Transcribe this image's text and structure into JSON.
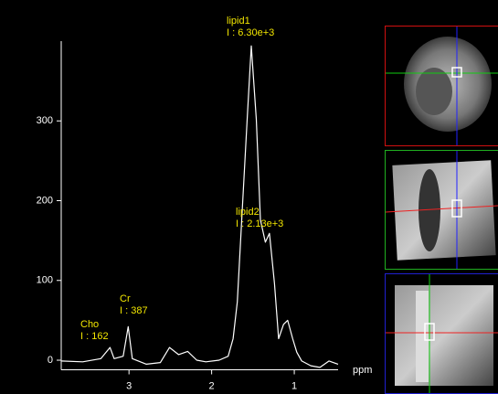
{
  "chart_data": {
    "type": "line",
    "x_label": "ppm",
    "color": "#ffffff",
    "annotation_color": "#f2e600",
    "x": [
      3.82,
      3.56,
      3.34,
      3.23,
      3.18,
      3.07,
      3.01,
      2.96,
      2.79,
      2.62,
      2.51,
      2.4,
      2.29,
      2.18,
      2.07,
      1.91,
      1.8,
      1.74,
      1.69,
      1.63,
      1.57,
      1.52,
      1.46,
      1.41,
      1.35,
      1.3,
      1.24,
      1.19,
      1.13,
      1.08,
      1.02,
      0.97,
      0.91,
      0.8,
      0.69,
      0.58,
      0.47
    ],
    "values": [
      -1,
      -2,
      2,
      16,
      2,
      5,
      42,
      2,
      -5,
      -3,
      16,
      7,
      11,
      0,
      -2,
      0,
      5,
      27,
      73,
      188,
      302,
      394,
      302,
      176,
      148,
      159,
      96,
      27,
      45,
      50,
      27,
      10,
      -1,
      -7,
      -9,
      -1,
      -5
    ],
    "xlim": [
      3.82,
      0.47
    ],
    "xticks": [
      3,
      2,
      1
    ],
    "ylim": [
      -12,
      400
    ],
    "yticks": [
      0,
      100,
      200,
      300
    ],
    "annotations": [
      {
        "name": "Cho",
        "text": "I : 162"
      },
      {
        "name": "Cr",
        "text": "I : 387"
      },
      {
        "name": "lipid1",
        "text": "I : 6.30e+3"
      },
      {
        "name": "lipid2",
        "text": "I : 2.13e+3"
      }
    ]
  }
}
